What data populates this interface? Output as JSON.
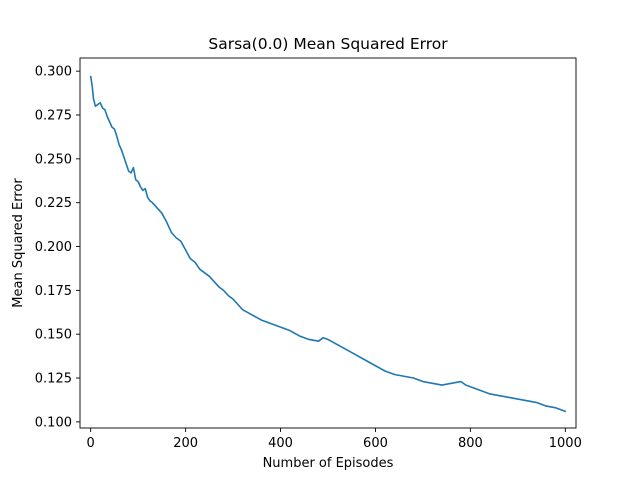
{
  "chart_data": {
    "type": "line",
    "title": "Sarsa(0.0) Mean Squared Error",
    "xlabel": "Number of Episodes",
    "ylabel": "Mean Squared Error",
    "xlim": [
      -22.5,
      1022.5
    ],
    "ylim": [
      0.0965,
      0.3075
    ],
    "xticks": [
      0,
      200,
      400,
      600,
      800,
      1000
    ],
    "xtick_labels": [
      "0",
      "200",
      "400",
      "600",
      "800",
      "1000"
    ],
    "yticks": [
      0.1,
      0.125,
      0.15,
      0.175,
      0.2,
      0.225,
      0.25,
      0.275,
      0.3
    ],
    "ytick_labels": [
      "0.100",
      "0.125",
      "0.150",
      "0.175",
      "0.200",
      "0.225",
      "0.250",
      "0.275",
      "0.300"
    ],
    "grid": false,
    "line_color": "#1f77b4",
    "series": [
      {
        "x": [
          0,
          3,
          6,
          10,
          15,
          20,
          25,
          30,
          35,
          40,
          45,
          50,
          55,
          60,
          65,
          70,
          75,
          80,
          85,
          90,
          95,
          100,
          105,
          110,
          115,
          120,
          125,
          130,
          140,
          150,
          160,
          170,
          180,
          190,
          200,
          210,
          220,
          230,
          240,
          250,
          260,
          270,
          280,
          290,
          300,
          320,
          340,
          360,
          380,
          400,
          420,
          440,
          460,
          480,
          490,
          500,
          520,
          540,
          560,
          580,
          600,
          620,
          640,
          660,
          680,
          700,
          720,
          740,
          760,
          780,
          790,
          800,
          820,
          840,
          860,
          880,
          900,
          920,
          940,
          960,
          980,
          990,
          1000
        ],
        "y": [
          0.297,
          0.292,
          0.284,
          0.28,
          0.281,
          0.282,
          0.279,
          0.278,
          0.274,
          0.271,
          0.268,
          0.267,
          0.263,
          0.258,
          0.255,
          0.251,
          0.247,
          0.243,
          0.242,
          0.245,
          0.238,
          0.237,
          0.234,
          0.232,
          0.233,
          0.228,
          0.226,
          0.225,
          0.222,
          0.219,
          0.214,
          0.208,
          0.205,
          0.203,
          0.198,
          0.193,
          0.191,
          0.187,
          0.185,
          0.183,
          0.18,
          0.177,
          0.175,
          0.172,
          0.17,
          0.164,
          0.161,
          0.158,
          0.156,
          0.154,
          0.152,
          0.149,
          0.147,
          0.146,
          0.148,
          0.147,
          0.144,
          0.141,
          0.138,
          0.135,
          0.132,
          0.129,
          0.127,
          0.126,
          0.125,
          0.123,
          0.122,
          0.121,
          0.122,
          0.123,
          0.121,
          0.12,
          0.118,
          0.116,
          0.115,
          0.114,
          0.113,
          0.112,
          0.111,
          0.109,
          0.108,
          0.107,
          0.106
        ]
      }
    ]
  }
}
